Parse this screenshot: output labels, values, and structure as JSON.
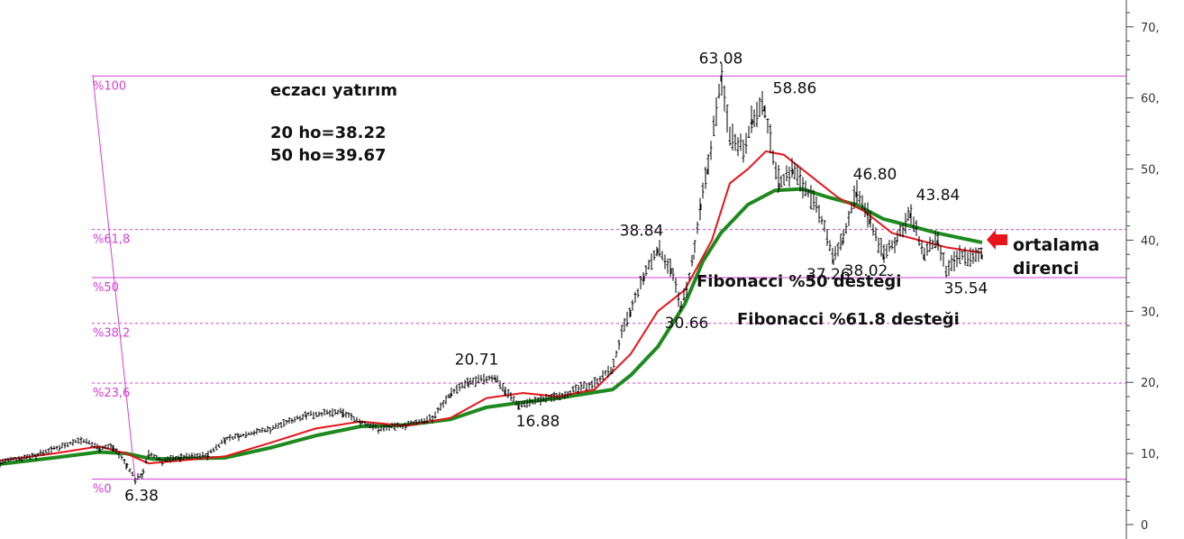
{
  "chart_data": {
    "type": "line",
    "title_lines": [
      "eczacı yatırım",
      "20 ho=38.22",
      "50 ho=39.67"
    ],
    "ylim": [
      0,
      72
    ],
    "y_ticks": [
      {
        "value": 70,
        "label": "70,"
      },
      {
        "value": 60,
        "label": "60,"
      },
      {
        "value": 50,
        "label": "50,"
      },
      {
        "value": 40,
        "label": "40,"
      },
      {
        "value": 30,
        "label": "30,"
      },
      {
        "value": 20,
        "label": "20,"
      },
      {
        "value": 10,
        "label": "10,"
      },
      {
        "value": 0,
        "label": "0"
      }
    ],
    "xlim": [
      0,
      1250
    ],
    "colors": {
      "price": "#000000",
      "ma20": "#e8141b",
      "ma50": "#1e8a1e",
      "fib": "#d43fd4",
      "arrow": "#e8141b"
    },
    "price_series": {
      "name": "",
      "x": [
        0,
        40,
        90,
        110,
        125,
        140,
        150,
        158,
        165,
        180,
        200,
        230,
        250,
        265,
        300,
        340,
        380,
        400,
        420,
        450,
        480,
        500,
        520,
        550,
        560,
        575,
        600,
        630,
        660,
        680,
        690,
        700,
        715,
        730,
        745,
        755,
        762,
        770,
        778,
        785,
        795,
        800,
        810,
        825,
        835,
        848,
        858,
        865,
        880,
        900,
        915,
        925,
        935,
        950,
        965,
        980,
        995,
        1010,
        1025,
        1040,
        1050,
        1065,
        1080,
        1090
      ],
      "y": [
        8.8,
        9.8,
        12.0,
        10.8,
        11.0,
        8.5,
        6.38,
        7.2,
        10.0,
        9.0,
        9.5,
        9.8,
        12.0,
        12.5,
        13.5,
        15.5,
        15.8,
        14.5,
        13.5,
        14.0,
        15.0,
        18.5,
        20.0,
        20.71,
        19.0,
        16.88,
        17.5,
        18.5,
        20.0,
        22.0,
        27.0,
        30.0,
        35.0,
        38.84,
        36.0,
        30.66,
        33.0,
        38.0,
        45.0,
        50.0,
        58.0,
        63.08,
        55.0,
        53.0,
        57.0,
        58.86,
        52.0,
        48.0,
        50.0,
        46.0,
        42.0,
        37.26,
        40.0,
        46.8,
        43.0,
        38.02,
        40.0,
        43.84,
        38.0,
        40.0,
        35.54,
        38.0,
        37.5,
        38.0
      ]
    },
    "ma20": {
      "name": "20 ho",
      "x": [
        0,
        60,
        110,
        140,
        165,
        200,
        250,
        300,
        350,
        400,
        450,
        500,
        540,
        580,
        620,
        660,
        700,
        730,
        760,
        790,
        810,
        830,
        850,
        870,
        900,
        930,
        960,
        990,
        1020,
        1050,
        1090
      ],
      "y": [
        9.0,
        10.0,
        11.0,
        10.0,
        8.6,
        9.0,
        9.6,
        11.5,
        13.5,
        14.5,
        13.9,
        15.0,
        17.8,
        18.5,
        18.0,
        19.0,
        24.0,
        30.0,
        33.0,
        40.0,
        48.0,
        50.0,
        52.5,
        52.0,
        49.0,
        46.0,
        44.0,
        41.0,
        40.0,
        39.0,
        38.22
      ]
    },
    "ma50": {
      "name": "50 ho",
      "x": [
        0,
        60,
        110,
        140,
        170,
        250,
        300,
        350,
        400,
        450,
        500,
        540,
        580,
        620,
        680,
        700,
        730,
        760,
        780,
        800,
        830,
        860,
        890,
        920,
        950,
        980,
        1010,
        1040,
        1090
      ],
      "y": [
        8.5,
        9.4,
        10.2,
        10.0,
        9.2,
        9.4,
        10.8,
        12.5,
        13.8,
        14.0,
        14.8,
        16.5,
        17.2,
        17.8,
        19.0,
        21.0,
        25.0,
        31.0,
        37.0,
        41.0,
        45.0,
        47.0,
        47.2,
        46.0,
        45.0,
        43.0,
        42.0,
        41.0,
        39.67
      ]
    },
    "fibonacci": {
      "base_x": 150,
      "top_x": 103,
      "levels": [
        {
          "label": "%100",
          "value": 63.08,
          "style": "solid"
        },
        {
          "label": "%61,8",
          "value": 41.5,
          "style": "dashed"
        },
        {
          "label": "%50",
          "value": 34.73,
          "style": "solid"
        },
        {
          "label": "%38,2",
          "value": 28.3,
          "style": "dashed"
        },
        {
          "label": "%23,6",
          "value": 19.9,
          "style": "dashed"
        },
        {
          "label": "%0",
          "value": 6.38,
          "style": "solid"
        }
      ]
    },
    "price_labels": [
      {
        "text": "63.08",
        "x": 800,
        "y": 63.08,
        "pos": "above"
      },
      {
        "text": "58.86",
        "x": 882,
        "y": 58.86,
        "pos": "above"
      },
      {
        "text": "46.80",
        "x": 971,
        "y": 46.8,
        "pos": "above"
      },
      {
        "text": "43.84",
        "x": 1041,
        "y": 43.84,
        "pos": "above"
      },
      {
        "text": "38.84",
        "x": 712,
        "y": 38.84,
        "pos": "above"
      },
      {
        "text": "37.26",
        "x": 889,
        "y": 37.26,
        "pos": "right"
      },
      {
        "text": "38.02",
        "x": 961,
        "y": 38.02,
        "pos": "below"
      },
      {
        "text": "35.54",
        "x": 1072,
        "y": 35.54,
        "pos": "below"
      },
      {
        "text": "30.66",
        "x": 762,
        "y": 30.66,
        "pos": "below"
      },
      {
        "text": "20.71",
        "x": 529,
        "y": 20.71,
        "pos": "above"
      },
      {
        "text": "16.88",
        "x": 597,
        "y": 16.88,
        "pos": "below"
      },
      {
        "text": "6.38",
        "x": 157,
        "y": 6.38,
        "pos": "below"
      }
    ],
    "annotations": {
      "fib50_support": "Fibonacci %50 desteği",
      "fib618_support": "Fibonacci %61.8 desteği",
      "resistance_line1": "ortalama",
      "resistance_line2": "direnci"
    }
  }
}
